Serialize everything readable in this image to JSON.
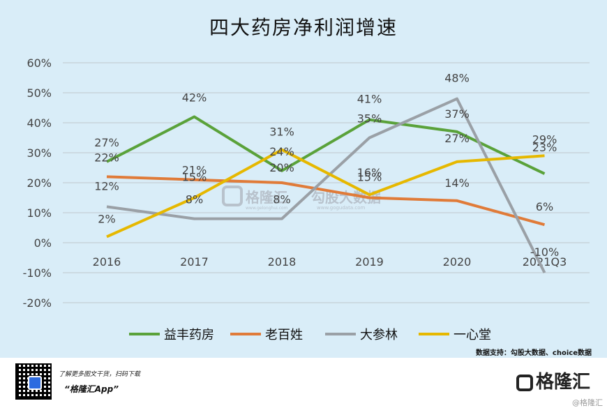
{
  "chart_data": {
    "type": "line",
    "title": "四大药房净利润增速",
    "categories": [
      "2016",
      "2017",
      "2018",
      "2019",
      "2020",
      "2021Q3"
    ],
    "y_ticks": [
      "60%",
      "50%",
      "40%",
      "30%",
      "20%",
      "10%",
      "0%",
      "-10%",
      "-20%"
    ],
    "ylim": [
      -20,
      60
    ],
    "grid": true,
    "legend_position": "bottom",
    "series": [
      {
        "name": "益丰药房",
        "color": "#5aa23a",
        "values": [
          27,
          42,
          24,
          41,
          37,
          23
        ],
        "labels": [
          "27%",
          "42%",
          "24%",
          "41%",
          "37%",
          "23%"
        ]
      },
      {
        "name": "老百姓",
        "color": "#e07b39",
        "values": [
          22,
          21,
          20,
          15,
          14,
          6
        ],
        "labels": [
          "22%",
          "21%",
          "20%",
          "15%",
          "14%",
          "6%"
        ]
      },
      {
        "name": "大参林",
        "color": "#9aa0a6",
        "values": [
          12,
          8,
          8,
          35,
          48,
          -10
        ],
        "labels": [
          "12%",
          "8%",
          "8%",
          "35%",
          "48%",
          "-10%"
        ]
      },
      {
        "name": "一心堂",
        "color": "#e6b800",
        "values": [
          2,
          15,
          31,
          16,
          27,
          29
        ],
        "labels": [
          "2%",
          "15%",
          "31%",
          "16%",
          "27%",
          "29%"
        ]
      }
    ]
  },
  "source": "数据支持：勾股大数据、choice数据",
  "watermark": {
    "brand": "格隆汇",
    "site": "www.gelonghui.com",
    "partner": "勾股大数据",
    "partner_site": "www.gogudata.com"
  },
  "footer": {
    "promo": "了解更多图文干货，扫码下载",
    "app": "“格隆汇App”",
    "brand": "格隆汇",
    "bottom_mark": "@格隆汇"
  }
}
